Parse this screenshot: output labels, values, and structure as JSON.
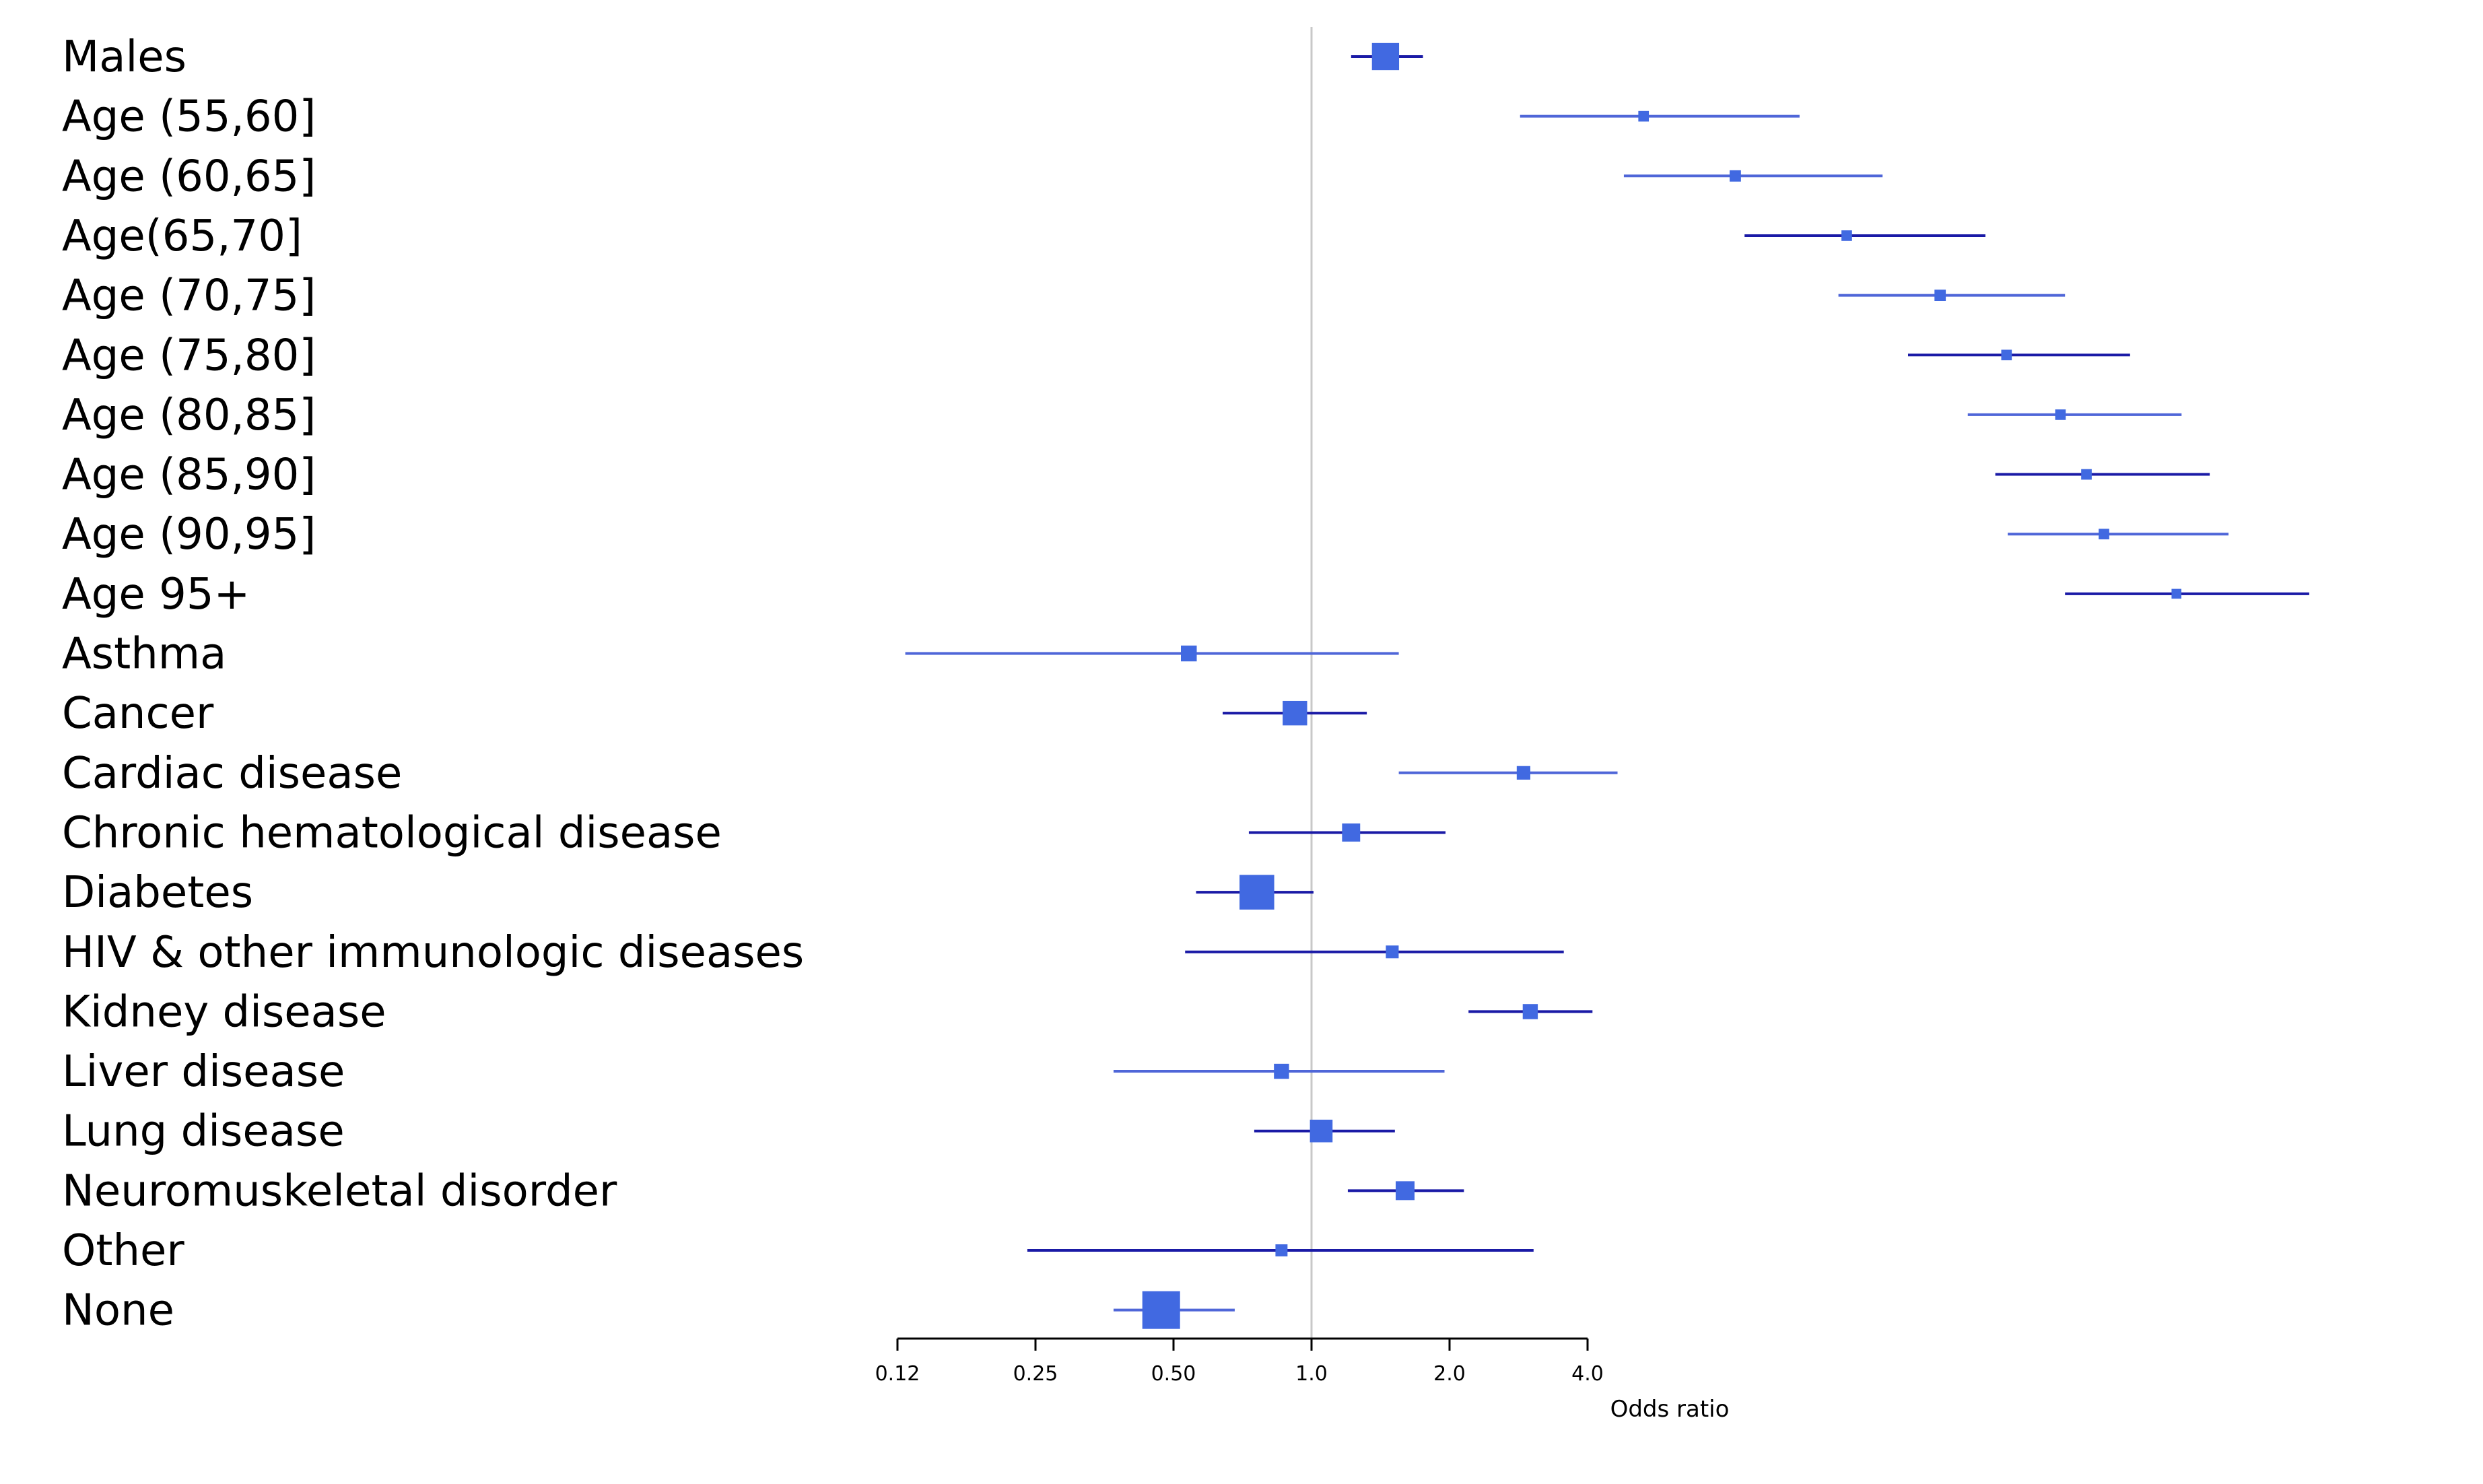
{
  "chart_data": {
    "type": "forest",
    "xlabel": "Odds ratio",
    "x_scale": "log2",
    "xlim": [
      0.12,
      4.0
    ],
    "reference_line": 1.0,
    "ticks": [
      {
        "value": 0.125,
        "label": "0.12"
      },
      {
        "value": 0.25,
        "label": "0.25"
      },
      {
        "value": 0.5,
        "label": "0.50"
      },
      {
        "value": 1.0,
        "label": "1.0"
      },
      {
        "value": 2.0,
        "label": "2.0"
      },
      {
        "value": 4.0,
        "label": "4.0"
      }
    ],
    "colors": {
      "point": "#4169e1",
      "ci_light": "#4f66d8",
      "ci_dark": "#1a1aa6",
      "reference": "#c8c8c8",
      "axis": "#000000"
    },
    "rows": [
      {
        "label": "Males",
        "or": 1.45,
        "lo": 1.22,
        "hi": 1.75,
        "weight": 0.72,
        "ci_shade": "dark"
      },
      {
        "label": "Age (55,60]",
        "or": 5.3,
        "lo": 2.85,
        "hi": 11.6,
        "weight": 0.28,
        "ci_shade": "light"
      },
      {
        "label": "Age (60,65]",
        "or": 8.4,
        "lo": 4.8,
        "hi": 17.6,
        "weight": 0.3,
        "ci_shade": "light"
      },
      {
        "label": "Age(65,70]",
        "or": 14.7,
        "lo": 8.8,
        "hi": 29.5,
        "weight": 0.28,
        "ci_shade": "dark"
      },
      {
        "label": "Age (70,75]",
        "or": 23.5,
        "lo": 14.1,
        "hi": 44.0,
        "weight": 0.3,
        "ci_shade": "light"
      },
      {
        "label": "Age (75,80]",
        "or": 32.8,
        "lo": 20.0,
        "hi": 61.0,
        "weight": 0.28,
        "ci_shade": "dark"
      },
      {
        "label": "Age (80,85]",
        "or": 43.0,
        "lo": 27.0,
        "hi": 79.0,
        "weight": 0.28,
        "ci_shade": "light"
      },
      {
        "label": "Age (85,90]",
        "or": 49.0,
        "lo": 31.0,
        "hi": 91.0,
        "weight": 0.28,
        "ci_shade": "dark"
      },
      {
        "label": "Age (90,95]",
        "or": 53.5,
        "lo": 33.0,
        "hi": 100.0,
        "weight": 0.28,
        "ci_shade": "light"
      },
      {
        "label": "Age 95+",
        "or": 77.0,
        "lo": 44.0,
        "hi": 150.0,
        "weight": 0.26,
        "ci_shade": "dark"
      },
      {
        "label": "Asthma",
        "or": 0.54,
        "lo": 0.13,
        "hi": 1.55,
        "weight": 0.42,
        "ci_shade": "light"
      },
      {
        "label": "Cancer",
        "or": 0.92,
        "lo": 0.64,
        "hi": 1.32,
        "weight": 0.65,
        "ci_shade": "dark"
      },
      {
        "label": "Cardiac disease",
        "or": 2.9,
        "lo": 1.55,
        "hi": 4.65,
        "weight": 0.36,
        "ci_shade": "light"
      },
      {
        "label": "Chronic hematological disease",
        "or": 1.22,
        "lo": 0.73,
        "hi": 1.96,
        "weight": 0.48,
        "ci_shade": "dark"
      },
      {
        "label": "Diabetes",
        "or": 0.76,
        "lo": 0.56,
        "hi": 1.01,
        "weight": 0.92,
        "ci_shade": "dark"
      },
      {
        "label": "HIV & other immunologic diseases",
        "or": 1.5,
        "lo": 0.53,
        "hi": 3.55,
        "weight": 0.34,
        "ci_shade": "dark"
      },
      {
        "label": "Kidney disease",
        "or": 3.0,
        "lo": 2.2,
        "hi": 4.1,
        "weight": 0.4,
        "ci_shade": "dark"
      },
      {
        "label": "Liver disease",
        "or": 0.86,
        "lo": 0.37,
        "hi": 1.95,
        "weight": 0.4,
        "ci_shade": "light"
      },
      {
        "label": "Lung disease",
        "or": 1.05,
        "lo": 0.75,
        "hi": 1.52,
        "weight": 0.6,
        "ci_shade": "dark"
      },
      {
        "label": "Neuromuskeletal disorder",
        "or": 1.6,
        "lo": 1.2,
        "hi": 2.15,
        "weight": 0.5,
        "ci_shade": "dark"
      },
      {
        "label": "Other",
        "or": 0.86,
        "lo": 0.24,
        "hi": 3.05,
        "weight": 0.32,
        "ci_shade": "dark"
      },
      {
        "label": "None",
        "or": 0.47,
        "lo": 0.37,
        "hi": 0.68,
        "weight": 1.0,
        "ci_shade": "light"
      }
    ]
  }
}
